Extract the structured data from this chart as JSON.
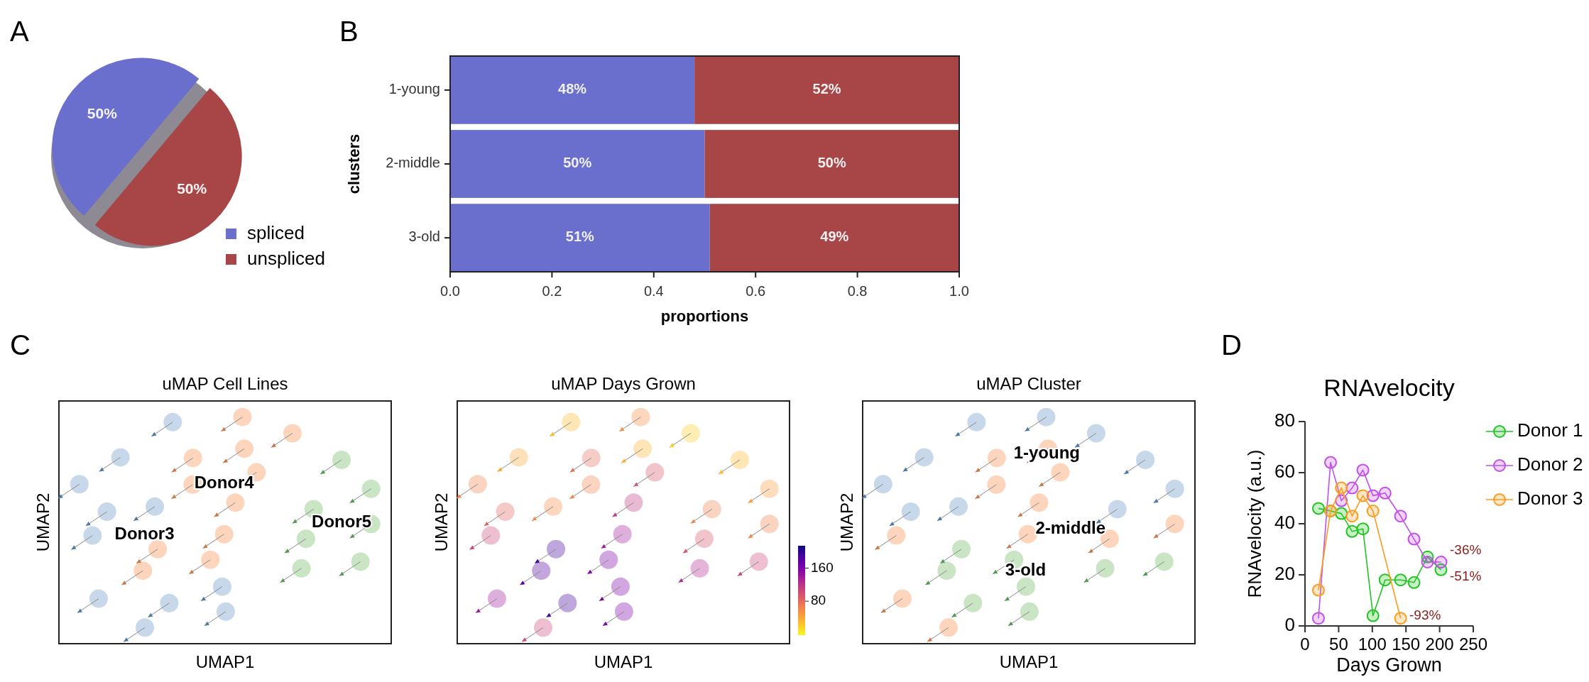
{
  "chart_data": [
    {
      "type": "pie",
      "annotations": [
        "A"
      ],
      "categories": [
        "spliced",
        "unspliced"
      ],
      "values": [
        50,
        50
      ],
      "colors": [
        "#6a6fcd",
        "#a84547"
      ],
      "value_labels": [
        "50%",
        "50%"
      ],
      "legend": "bottom right"
    },
    {
      "type": "bar",
      "orientation": "horizontal",
      "stacked": true,
      "annotations": [
        "B"
      ],
      "xlabel": "proportions",
      "ylabel": "clusters",
      "categories": [
        "1-young",
        "2-middle",
        "3-old"
      ],
      "xlim": [
        0,
        1
      ],
      "xticks": [
        {
          "value": 0,
          "label": "0.0"
        },
        0.2,
        0.4,
        0.6,
        0.8,
        {
          "value": 1,
          "label": "1.0"
        }
      ],
      "series": [
        {
          "color": "#6a6fcd",
          "values": [
            0.48,
            0.5,
            0.51
          ],
          "value_labels": [
            "48%",
            "50%",
            "51%"
          ]
        },
        {
          "color": "#a84547",
          "values": [
            0.52,
            0.5,
            0.49
          ],
          "value_labels": [
            "52%",
            "50%",
            "49%"
          ]
        }
      ]
    },
    {
      "type": "other",
      "title": "uMAP Cell Lines",
      "xlabel": "UMAP1",
      "ylabel": "UMAP2",
      "annotations": [
        "C",
        "Donor3",
        "Donor4",
        "Donor5"
      ]
    },
    {
      "type": "other",
      "title": "uMAP Days Grown",
      "xlabel": "UMAP1",
      "ylabel": "UMAP2",
      "annotations": [
        "160",
        "80"
      ]
    },
    {
      "type": "other",
      "title": "uMAP Cluster",
      "xlabel": "UMAP1",
      "ylabel": "UMAP2",
      "annotations": [
        "1-young",
        "2-middle",
        "3-old"
      ]
    },
    {
      "type": "line",
      "title": "RNAvelocity",
      "xlabel": "Days Grown",
      "ylabel": "RNAvelocity (a.u.)",
      "xlim": [
        0,
        250
      ],
      "xticks": [
        0,
        50,
        100,
        150,
        200,
        250
      ],
      "ylim": [
        0,
        80
      ],
      "yticks": [
        0,
        20,
        40,
        60,
        80
      ],
      "marker": "circle",
      "legend": "top right",
      "annotations": [
        "D",
        "-36%",
        "-51%",
        "-93%"
      ],
      "series": [
        {
          "name": "Donor 1",
          "color": "#22c422",
          "x": [
            20,
            38,
            54,
            70,
            86,
            101,
            119,
            142,
            162,
            182,
            202
          ],
          "values": [
            46,
            45,
            44,
            37,
            38,
            4,
            18,
            18,
            17,
            27,
            22
          ]
        },
        {
          "name": "Donor 2",
          "color": "#c050e8",
          "x": [
            20,
            38,
            54,
            70,
            86,
            101,
            119,
            142,
            162,
            182,
            202
          ],
          "values": [
            3,
            64,
            49,
            54,
            61,
            51,
            52,
            43,
            34,
            25,
            25
          ]
        },
        {
          "name": "Donor 3",
          "color": "#ff9b1a",
          "x": [
            20,
            38,
            54,
            70,
            86,
            101,
            142
          ],
          "values": [
            14,
            45,
            54,
            43,
            51,
            45,
            3
          ]
        }
      ]
    }
  ]
}
